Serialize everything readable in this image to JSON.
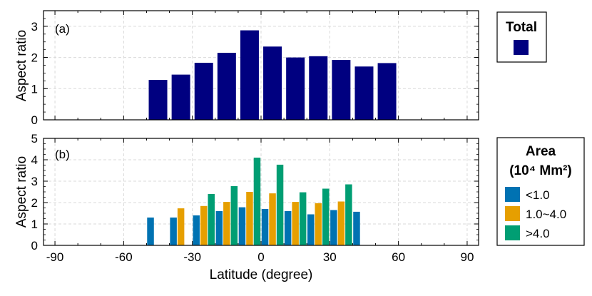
{
  "chart_data": [
    {
      "type": "bar",
      "panel_label": "(a)",
      "ylabel": "Aspect ratio",
      "xlim": [
        -95,
        95
      ],
      "ylim": [
        0,
        3.5
      ],
      "yticks": [
        0,
        1,
        2,
        3
      ],
      "grid": true,
      "series": [
        {
          "name": "Total",
          "color": "#000080",
          "x": [
            -45,
            -35,
            -25,
            -15,
            -5,
            5,
            15,
            25,
            35,
            45,
            55
          ],
          "values": [
            1.28,
            1.45,
            1.83,
            2.15,
            2.87,
            2.35,
            2.0,
            2.04,
            1.92,
            1.71,
            1.82
          ]
        }
      ],
      "legend": {
        "title": "Total",
        "placement": "right"
      }
    },
    {
      "type": "bar",
      "panel_label": "(b)",
      "xlabel": "Latitude (degree)",
      "ylabel": "Aspect ratio",
      "xlim": [
        -95,
        95
      ],
      "ylim": [
        0,
        5
      ],
      "yticks": [
        0,
        1,
        2,
        3,
        4,
        5
      ],
      "xticks": [
        -90,
        -60,
        -30,
        0,
        30,
        60,
        90
      ],
      "grid": true,
      "series": [
        {
          "name": "<1.0",
          "color": "#0072B2",
          "x": [
            -45,
            -35,
            -25,
            -15,
            -5,
            5,
            15,
            25,
            35,
            45
          ],
          "values": [
            1.3,
            1.3,
            1.4,
            1.6,
            1.78,
            1.7,
            1.6,
            1.45,
            1.65,
            1.57
          ]
        },
        {
          "name": "1.0~4.0",
          "color": "#E69F00",
          "x": [
            -35,
            -25,
            -15,
            -5,
            5,
            15,
            25,
            35
          ],
          "values": [
            1.73,
            1.84,
            2.03,
            2.5,
            2.43,
            2.03,
            1.97,
            2.05
          ]
        },
        {
          "name": ">4.0",
          "color": "#009E73",
          "x": [
            -25,
            -15,
            -5,
            5,
            15,
            25,
            35
          ],
          "values": [
            2.4,
            2.77,
            4.1,
            3.77,
            2.48,
            2.65,
            2.85
          ]
        }
      ],
      "legend": {
        "title_line1": "Area",
        "title_line2": "(10⁴ Mm²)",
        "placement": "right"
      }
    }
  ]
}
